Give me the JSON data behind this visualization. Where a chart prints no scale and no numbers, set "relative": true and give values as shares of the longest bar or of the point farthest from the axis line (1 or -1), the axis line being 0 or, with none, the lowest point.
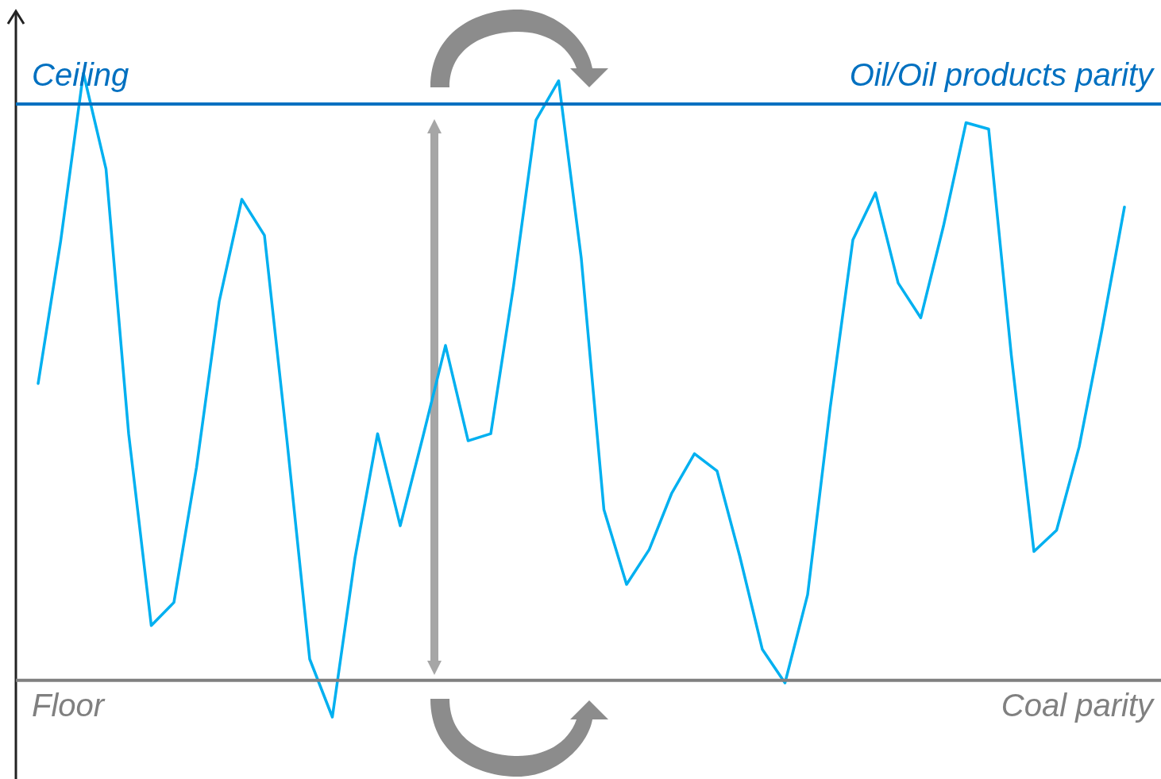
{
  "chart_data": {
    "type": "line",
    "relative": true,
    "marker": "none",
    "line_style": "solid",
    "categories": [
      null,
      null,
      null,
      null,
      null,
      null,
      null,
      null,
      null,
      null,
      null,
      null,
      null,
      null,
      null,
      null,
      null,
      null,
      null,
      null,
      null,
      null,
      null,
      null,
      null,
      null,
      null,
      null,
      null,
      null,
      null,
      null,
      null,
      null,
      null,
      null,
      null,
      null,
      null,
      null,
      null,
      null,
      null,
      null,
      null,
      null,
      null,
      null,
      null
    ],
    "series": [
      {
        "color": "#00b0f0",
        "values": [
          0.518,
          0.74,
          1,
          0.851,
          0.44,
          0.142,
          0.178,
          0.388,
          0.645,
          0.804,
          0.748,
          0.428,
          0.09,
          0,
          0.247,
          0.44,
          0.297,
          0.435,
          0.577,
          0.429,
          0.44,
          0.668,
          0.927,
          0.988,
          0.712,
          0.322,
          0.206,
          0.26,
          0.348,
          0.409,
          0.382,
          0.25,
          0.105,
          0.053,
          0.19,
          0.481,
          0.741,
          0.814,
          0.674,
          0.62,
          0.762,
          0.923,
          0.913,
          0.562,
          0.257,
          0.29,
          0.42,
          0.6,
          0.792
        ]
      }
    ],
    "ref_lines": [
      {
        "axis": "y",
        "value": 0.952,
        "label": "Oil/Oil products parity",
        "color": "#0070c0"
      },
      {
        "axis": "y",
        "value": 0.057,
        "label": "Coal parity",
        "color": "#808080"
      }
    ],
    "annotations": [
      "Ceiling",
      "Floor"
    ]
  }
}
